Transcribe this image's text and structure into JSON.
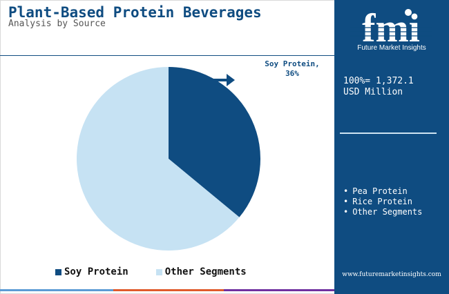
{
  "header": {
    "title": "Plant-Based Protein Beverages",
    "subtitle": "Analysis by Source"
  },
  "chart_data": {
    "type": "pie",
    "categories": [
      "Soy Protein",
      "Other Segments"
    ],
    "values": [
      36,
      64
    ],
    "colors": [
      "#0f4c81",
      "#c6e2f3"
    ],
    "annotations": [
      "Soy Protein, 36%"
    ],
    "legend_position": "bottom"
  },
  "callout": {
    "line1": "Soy Protein,",
    "line2": "36%"
  },
  "legend": {
    "items": [
      {
        "label": "Soy Protein",
        "color": "#0f4c81"
      },
      {
        "label": "Other Segments",
        "color": "#c6e2f3"
      }
    ]
  },
  "panel": {
    "logo_icon": "fmi-logo-icon",
    "logo_letters": "fmi",
    "logo_text": "Future Market Insights",
    "total_value": "100%= 1,372.1",
    "total_unit": "USD Million",
    "segments": [
      "Pea Protein",
      "Rice Protein",
      "Other Segments"
    ],
    "footer_url": "www.futuremarketinsights.com",
    "background_color": "#0f4c81"
  },
  "bottom_bar_colors": [
    "#5b9bd5",
    "#e05a2b",
    "#7030a0"
  ]
}
